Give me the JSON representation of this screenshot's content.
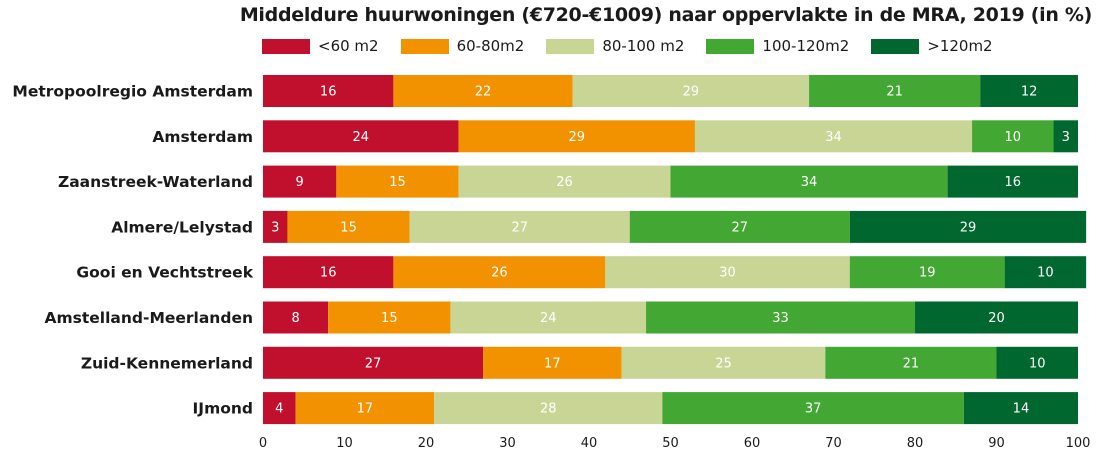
{
  "chart_data": {
    "type": "bar",
    "orientation": "horizontal",
    "stacked": true,
    "title": "Middeldure huurwoningen (€720-€1009) naar oppervlakte  in de MRA, 2019 (in %)",
    "categories": [
      "Metropoolregio Amsterdam",
      "Amsterdam",
      "Zaanstreek-Waterland",
      "Almere/Lelystad",
      "Gooi en Vechtstreek",
      "Amstelland-Meerlanden",
      "Zuid-Kennemerland",
      "IJmond"
    ],
    "series": [
      {
        "name": "<60 m2",
        "color": "#c0102e",
        "values": [
          16,
          24,
          9,
          3,
          16,
          8,
          27,
          4
        ]
      },
      {
        "name": "60-80m2",
        "color": "#f39200",
        "values": [
          22,
          29,
          15,
          15,
          26,
          15,
          17,
          17
        ]
      },
      {
        "name": "80-100 m2",
        "color": "#c9d595",
        "values": [
          29,
          34,
          26,
          27,
          30,
          24,
          25,
          28
        ]
      },
      {
        "name": "100-120m2",
        "color": "#43a733",
        "values": [
          21,
          10,
          34,
          27,
          19,
          33,
          21,
          37
        ]
      },
      {
        "name": ">120m2",
        "color": "#00672f",
        "values": [
          12,
          3,
          16,
          29,
          10,
          20,
          10,
          14
        ]
      }
    ],
    "xlim": [
      0,
      100
    ],
    "x_ticks": [
      "0",
      "10",
      "20",
      "30",
      "40",
      "50",
      "60",
      "70",
      "80",
      "90",
      "100"
    ],
    "legend_position": "top",
    "grid": false
  }
}
